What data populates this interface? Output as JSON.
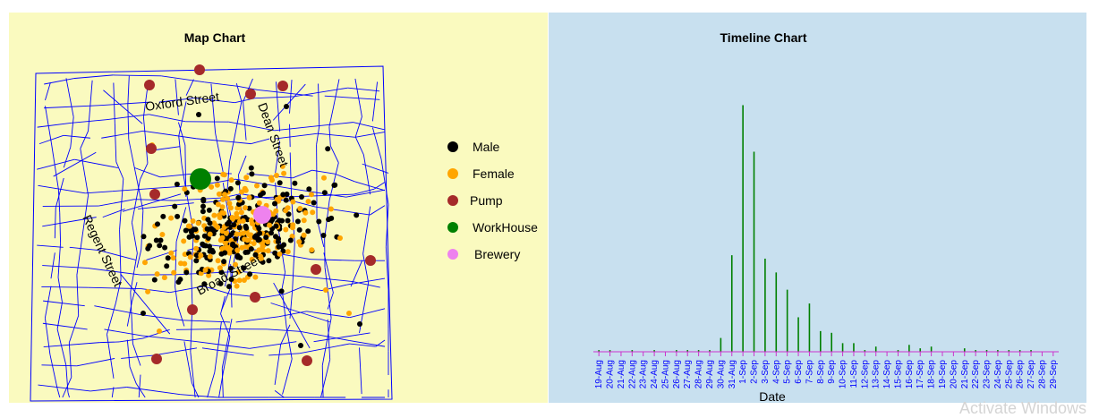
{
  "chart_data": [
    {
      "type": "scatter",
      "title": "Map Chart",
      "street_labels": [
        "Oxford Street",
        "Dean Street",
        "Regent Street",
        "Broad Street"
      ],
      "legend": [
        {
          "label": "Male",
          "color": "#000000"
        },
        {
          "label": "Female",
          "color": "#ffa500"
        },
        {
          "label": "Pump",
          "color": "#a52a2a"
        },
        {
          "label": "WorkHouse",
          "color": "#008000"
        },
        {
          "label": "Brewery",
          "color": "#ee82ee"
        }
      ],
      "legend_position": "right",
      "street_color": "#0000ff"
    },
    {
      "type": "bar",
      "title": "Timeline Chart",
      "xlabel": "Date",
      "ylabel": "",
      "categories": [
        "19-Aug",
        "20-Aug",
        "21-Aug",
        "22-Aug",
        "23-Aug",
        "24-Aug",
        "25-Aug",
        "26-Aug",
        "27-Aug",
        "28-Aug",
        "29-Aug",
        "30-Aug",
        "31-Aug",
        "1-Sep",
        "2-Sep",
        "3-Sep",
        "4-Sep",
        "5-Sep",
        "6-Sep",
        "7-Sep",
        "8-Sep",
        "9-Sep",
        "10-Sep",
        "11-Sep",
        "12-Sep",
        "13-Sep",
        "14-Sep",
        "15-Sep",
        "16-Sep",
        "17-Sep",
        "18-Sep",
        "19-Sep",
        "20-Sep",
        "21-Sep",
        "22-Sep",
        "23-Sep",
        "24-Sep",
        "25-Sep",
        "26-Sep",
        "27-Sep",
        "28-Sep",
        "29-Sep"
      ],
      "values": [
        1,
        1,
        0,
        1,
        0,
        1,
        0,
        1,
        1,
        1,
        1,
        8,
        56,
        143,
        116,
        54,
        46,
        36,
        20,
        28,
        12,
        11,
        5,
        5,
        1,
        3,
        0,
        1,
        4,
        2,
        3,
        0,
        0,
        2,
        1,
        1,
        1,
        1,
        1,
        1,
        0,
        0
      ],
      "ylim": [
        0,
        150
      ],
      "bar_color": "#008000",
      "axis_color": "#cc33cc",
      "tick_label_color": "#0000ff",
      "grid": false
    }
  ],
  "watermark": "Activate Windows"
}
